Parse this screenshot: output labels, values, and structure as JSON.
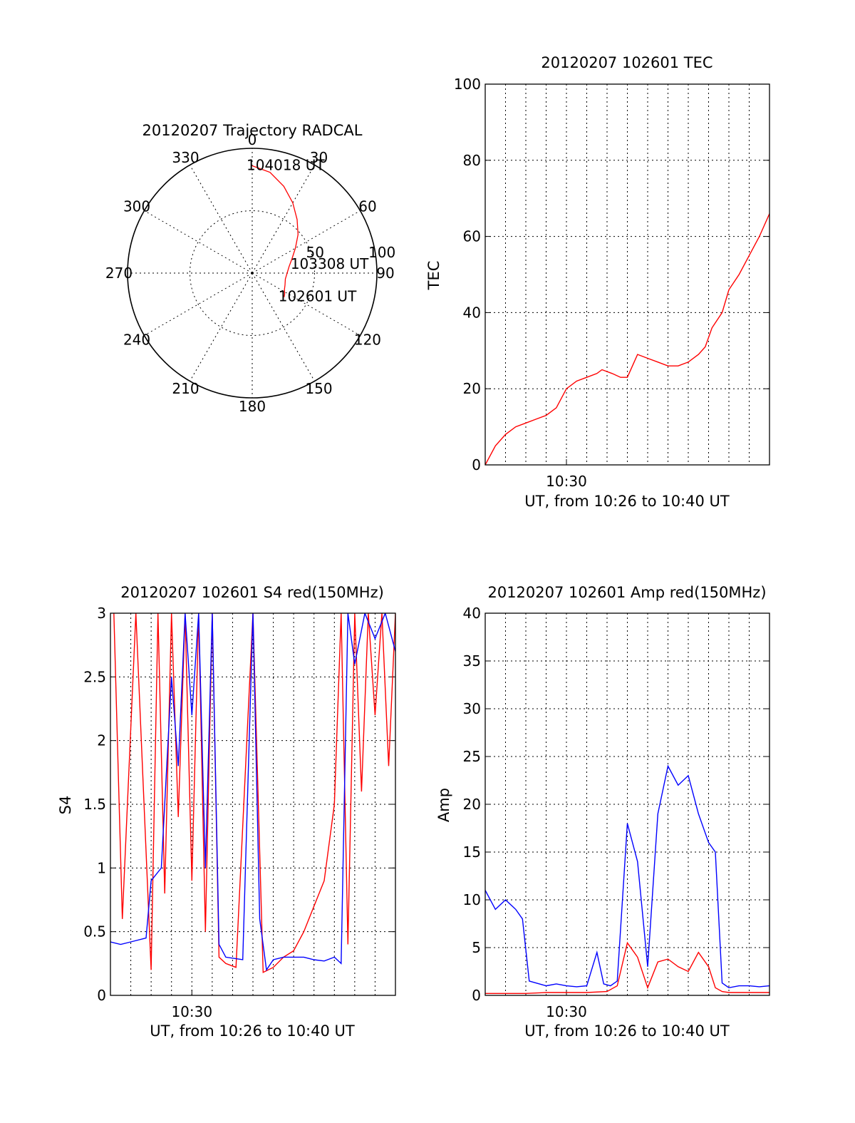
{
  "colors": {
    "red": "#ff0000",
    "blue": "#0000ff",
    "axis": "#000000",
    "background": "#ffffff"
  },
  "chart_data": [
    {
      "id": "trajectory",
      "type": "polar",
      "title": "20120207 Trajectory RADCAL",
      "angle_labels": [
        "0",
        "30",
        "60",
        "90",
        "120",
        "150",
        "180",
        "210",
        "240",
        "270",
        "300",
        "330"
      ],
      "radius_labels": [
        "50",
        "100"
      ],
      "rmax": 100,
      "grid": true,
      "series": [
        {
          "color": "red",
          "points": [
            {
              "az": 0,
              "el": 14
            },
            {
              "az": 10,
              "el": 18
            },
            {
              "az": 20,
              "el": 26
            },
            {
              "az": 30,
              "el": 35
            },
            {
              "az": 40,
              "el": 44
            },
            {
              "az": 50,
              "el": 52
            },
            {
              "az": 60,
              "el": 60
            },
            {
              "az": 70,
              "el": 66
            },
            {
              "az": 80,
              "el": 70
            },
            {
              "az": 90,
              "el": 72
            },
            {
              "az": 100,
              "el": 73
            },
            {
              "az": 110,
              "el": 72
            },
            {
              "az": 117,
              "el": 71
            },
            {
              "az": 123,
              "el": 69
            },
            {
              "az": 127,
              "el": 68
            }
          ]
        }
      ],
      "annotations": [
        {
          "text": "104018 UT",
          "az": 0,
          "el": 14
        },
        {
          "text": "103308 UT",
          "az": 79,
          "el": 64
        },
        {
          "text": "102601 UT",
          "az": 127,
          "el": 68
        }
      ]
    },
    {
      "id": "tec",
      "type": "line",
      "title": "20120207 102601 TEC",
      "xlabel": "UT, from 10:26 to 10:40 UT",
      "ylabel": "TEC",
      "xlim": [
        "10:26",
        "10:40"
      ],
      "x_ticks": [
        "10:30"
      ],
      "ylim": [
        0,
        100
      ],
      "y_ticks": [
        0,
        20,
        40,
        60,
        80,
        100
      ],
      "grid": true,
      "series": [
        {
          "color": "red",
          "x": [
            "10:26:00",
            "10:26:30",
            "10:27:00",
            "10:27:30",
            "10:28:00",
            "10:28:30",
            "10:29:00",
            "10:29:30",
            "10:30:00",
            "10:30:30",
            "10:31:00",
            "10:31:30",
            "10:31:45",
            "10:32:15",
            "10:32:40",
            "10:33:00",
            "10:33:30",
            "10:34:00",
            "10:34:30",
            "10:35:00",
            "10:35:30",
            "10:36:00",
            "10:36:30",
            "10:36:50",
            "10:37:10",
            "10:37:40",
            "10:38:00",
            "10:38:30",
            "10:39:00",
            "10:39:30",
            "10:40:00"
          ],
          "y": [
            0,
            5,
            8,
            10,
            11,
            12,
            13,
            15,
            20,
            22,
            23,
            24,
            25,
            24,
            23,
            23,
            29,
            28,
            27,
            26,
            26,
            27,
            29,
            31,
            36,
            40,
            46,
            50,
            55,
            60,
            66
          ]
        }
      ]
    },
    {
      "id": "s4",
      "type": "line",
      "title": "20120207 102601 S4 red(150MHz)",
      "xlabel": "UT, from 10:26 to 10:40 UT",
      "ylabel": "S4",
      "xlim": [
        "10:26",
        "10:40"
      ],
      "x_ticks": [
        "10:30"
      ],
      "ylim": [
        0,
        3
      ],
      "y_ticks": [
        "0",
        "0.5",
        "1",
        "1.5",
        "2",
        "2.5",
        "3"
      ],
      "grid": true,
      "series": [
        {
          "color": "red",
          "x": [
            "10:26:10",
            "10:26:35",
            "10:27:15",
            "10:28:00",
            "10:28:20",
            "10:28:40",
            "10:29:00",
            "10:29:20",
            "10:29:40",
            "10:30:00",
            "10:30:20",
            "10:30:40",
            "10:31:00",
            "10:31:20",
            "10:31:40",
            "10:32:10",
            "10:33:00",
            "10:33:30",
            "10:34:00",
            "10:34:30",
            "10:35:00",
            "10:35:30",
            "10:36:00",
            "10:36:30",
            "10:37:00",
            "10:37:20",
            "10:37:40",
            "10:38:00",
            "10:38:20",
            "10:38:40",
            "10:39:00",
            "10:39:20",
            "10:39:40",
            "10:40:00"
          ],
          "y": [
            3,
            0.6,
            3,
            0.2,
            3,
            0.8,
            3,
            1.4,
            3,
            0.9,
            3,
            0.5,
            3,
            0.3,
            0.25,
            0.22,
            3,
            0.18,
            0.22,
            0.3,
            0.35,
            0.5,
            0.7,
            0.9,
            1.5,
            3,
            0.4,
            3,
            1.6,
            3,
            2.2,
            3,
            1.8,
            3
          ]
        },
        {
          "color": "blue",
          "x": [
            "10:26:00",
            "10:26:30",
            "10:27:00",
            "10:27:45",
            "10:28:00",
            "10:28:30",
            "10:29:00",
            "10:29:20",
            "10:29:40",
            "10:30:00",
            "10:30:20",
            "10:30:40",
            "10:31:00",
            "10:31:20",
            "10:31:40",
            "10:32:30",
            "10:33:00",
            "10:33:20",
            "10:33:40",
            "10:34:00",
            "10:34:30",
            "10:35:00",
            "10:35:30",
            "10:36:00",
            "10:36:30",
            "10:37:00",
            "10:37:20",
            "10:37:40",
            "10:38:00",
            "10:38:30",
            "10:39:00",
            "10:39:30",
            "10:40:00"
          ],
          "y": [
            0.42,
            0.4,
            0.42,
            0.45,
            0.9,
            1.0,
            2.5,
            1.8,
            3,
            2.2,
            3,
            1.0,
            3,
            0.4,
            0.3,
            0.28,
            3,
            0.6,
            0.2,
            0.28,
            0.3,
            0.3,
            0.3,
            0.28,
            0.27,
            0.3,
            0.25,
            3,
            2.6,
            3,
            2.8,
            3,
            2.7
          ]
        }
      ]
    },
    {
      "id": "amp",
      "type": "line",
      "title": "20120207 102601 Amp red(150MHz)",
      "xlabel": "UT, from 10:26 to 10:40 UT",
      "ylabel": "Amp",
      "xlim": [
        "10:26",
        "10:40"
      ],
      "x_ticks": [
        "10:30"
      ],
      "ylim": [
        0,
        40
      ],
      "y_ticks": [
        0,
        5,
        10,
        15,
        20,
        25,
        30,
        35,
        40
      ],
      "grid": true,
      "series": [
        {
          "color": "blue",
          "x": [
            "10:26:00",
            "10:26:30",
            "10:27:00",
            "10:27:30",
            "10:27:50",
            "10:28:10",
            "10:28:40",
            "10:29:00",
            "10:29:30",
            "10:30:00",
            "10:30:30",
            "10:31:00",
            "10:31:30",
            "10:31:50",
            "10:32:10",
            "10:32:30",
            "10:33:00",
            "10:33:30",
            "10:34:00",
            "10:34:30",
            "10:35:00",
            "10:35:30",
            "10:36:00",
            "10:36:30",
            "10:37:00",
            "10:37:20",
            "10:37:40",
            "10:38:00",
            "10:38:30",
            "10:39:00",
            "10:39:30",
            "10:40:00"
          ],
          "y": [
            11,
            9,
            10,
            9,
            8,
            1.5,
            1.2,
            1.0,
            1.2,
            1.0,
            0.9,
            1.0,
            4.5,
            1.2,
            1.0,
            1.5,
            18,
            14,
            3,
            19,
            24,
            22,
            23,
            19,
            16,
            15,
            1.3,
            0.8,
            1.0,
            1.0,
            0.9,
            1.0
          ]
        },
        {
          "color": "red",
          "x": [
            "10:26:00",
            "10:27:00",
            "10:28:00",
            "10:29:00",
            "10:30:00",
            "10:31:00",
            "10:32:00",
            "10:32:30",
            "10:33:00",
            "10:33:30",
            "10:34:00",
            "10:34:30",
            "10:35:00",
            "10:35:30",
            "10:36:00",
            "10:36:30",
            "10:37:00",
            "10:37:20",
            "10:37:40",
            "10:38:00",
            "10:39:00",
            "10:40:00"
          ],
          "y": [
            0.2,
            0.2,
            0.2,
            0.3,
            0.3,
            0.3,
            0.4,
            1.0,
            5.5,
            4.0,
            0.8,
            3.5,
            3.8,
            3.0,
            2.5,
            4.5,
            3.0,
            0.8,
            0.4,
            0.3,
            0.3,
            0.3
          ]
        }
      ]
    }
  ]
}
